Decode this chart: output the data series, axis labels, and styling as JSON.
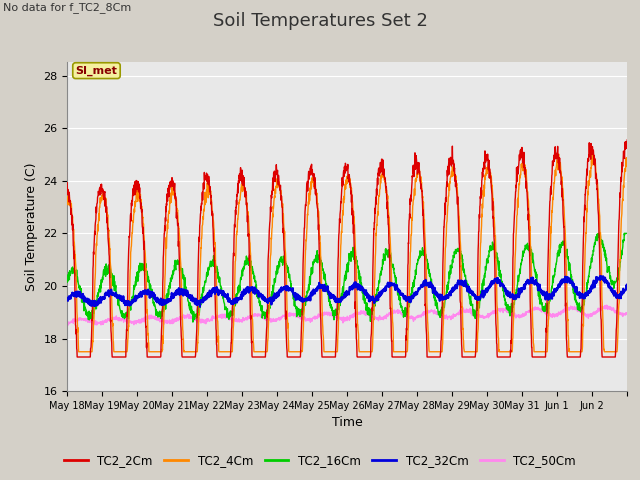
{
  "title": "Soil Temperatures Set 2",
  "subtitle": "No data for f_TC2_8Cm",
  "ylabel": "Soil Temperature (C)",
  "xlabel": "Time",
  "ylim": [
    16,
    28.5
  ],
  "yticks": [
    16,
    18,
    20,
    22,
    24,
    26,
    28
  ],
  "fig_bg_color": "#d4d0c8",
  "plot_bg_color": "#e8e8e8",
  "series_colors": {
    "TC2_2Cm": "#dd0000",
    "TC2_4Cm": "#ff8800",
    "TC2_16Cm": "#00cc00",
    "TC2_32Cm": "#0000dd",
    "TC2_50Cm": "#ff88ee"
  },
  "legend_labels": [
    "TC2_2Cm",
    "TC2_4Cm",
    "TC2_16Cm",
    "TC2_32Cm",
    "TC2_50Cm"
  ],
  "annotation_text": "SI_met",
  "n_days": 16,
  "x_tick_labels": [
    "May 18",
    "May 19",
    "May 20",
    "May 21",
    "May 22",
    "May 23",
    "May 24",
    "May 25",
    "May 26",
    "May 27",
    "May 28",
    "May 29",
    "May 30",
    "May 31",
    "Jun 1",
    "Jun 2"
  ],
  "title_fontsize": 13,
  "label_fontsize": 9,
  "tick_fontsize": 8
}
